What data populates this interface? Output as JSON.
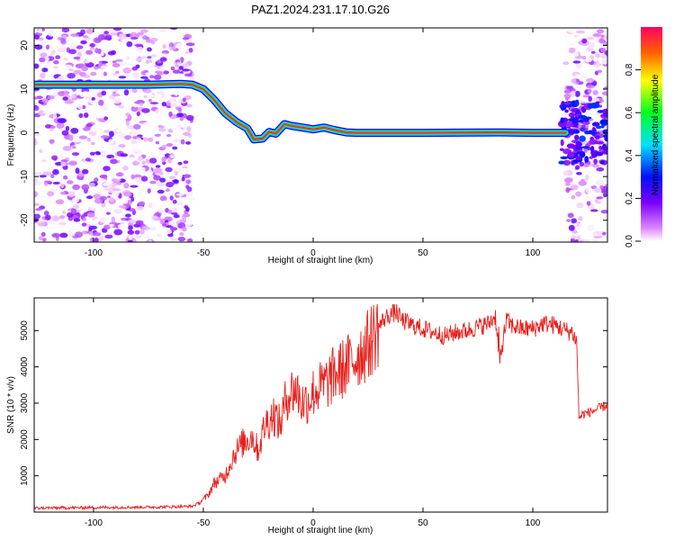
{
  "figure_title": "PAZ1.2024.231.17.10.G26",
  "chart_data": [
    {
      "type": "heatmap",
      "title": "PAZ1.2024.231.17.10.G26",
      "xlabel": "Height of straight line (km)",
      "ylabel": "Frequency (Hz)",
      "xlim": [
        -127,
        134
      ],
      "ylim": [
        -25,
        24
      ],
      "xticks": [
        -100,
        -50,
        0,
        50,
        100
      ],
      "yticks": [
        -20,
        -10,
        0,
        10,
        20
      ],
      "grid": false,
      "colorbar": {
        "label": "Normalized spectral amplitude",
        "range": [
          0,
          1
        ],
        "ticks": [
          "0.0",
          "0.2",
          "0.4",
          "0.6",
          "0.8"
        ],
        "colormap": "rainbow (white-magenta-blue-cyan-green-yellow-red)"
      },
      "noise_regions_x": [
        [
          -127,
          -55
        ],
        [
          115,
          134
        ]
      ],
      "ridge": {
        "description": "dominant frequency track vs height",
        "x": [
          -127,
          -100,
          -75,
          -60,
          -55,
          -50,
          -45,
          -40,
          -35,
          -30,
          -27,
          -23,
          -20,
          -17,
          -13,
          -10,
          -5,
          0,
          5,
          10,
          15,
          20,
          50,
          85,
          100,
          115
        ],
        "y": [
          11,
          11,
          11,
          11.2,
          11,
          10,
          7.5,
          4.5,
          2.5,
          1,
          -1.5,
          -1.3,
          0.2,
          -0.2,
          2,
          1.6,
          1.2,
          0.8,
          1.2,
          0.6,
          0.1,
          0,
          0,
          0.1,
          0,
          0
        ]
      }
    },
    {
      "type": "line",
      "xlabel": "Height of straight line (km)",
      "ylabel": "SNR (10 * v/v)",
      "xlim": [
        -127,
        134
      ],
      "ylim": [
        0,
        5900
      ],
      "xticks": [
        -100,
        -50,
        0,
        50,
        100
      ],
      "yticks": [
        1000,
        2000,
        3000,
        4000,
        5000
      ],
      "grid": false,
      "color": "#e8201c",
      "x": [
        -127,
        -110,
        -90,
        -70,
        -55,
        -52,
        -48,
        -45,
        -40,
        -36,
        -32,
        -28,
        -25,
        -22,
        -18,
        -15,
        -12,
        -8,
        -5,
        -2,
        0,
        5,
        10,
        15,
        20,
        25,
        28,
        32,
        35,
        38,
        40,
        45,
        50,
        55,
        60,
        65,
        70,
        75,
        80,
        83,
        85,
        88,
        90,
        95,
        100,
        105,
        110,
        115,
        118,
        120,
        121,
        123,
        126,
        130,
        134
      ],
      "y": [
        110,
        120,
        130,
        140,
        160,
        250,
        450,
        800,
        1000,
        1600,
        1900,
        2100,
        1700,
        2400,
        2700,
        2400,
        3200,
        3400,
        3000,
        3100,
        3300,
        3500,
        3800,
        4000,
        4300,
        4600,
        4900,
        5300,
        5450,
        5500,
        5300,
        5150,
        5050,
        4950,
        4850,
        4950,
        5000,
        5100,
        5200,
        5400,
        4200,
        5300,
        5150,
        5050,
        5050,
        5200,
        5150,
        5000,
        4950,
        4700,
        2600,
        2700,
        2750,
        2850,
        2950
      ]
    }
  ]
}
